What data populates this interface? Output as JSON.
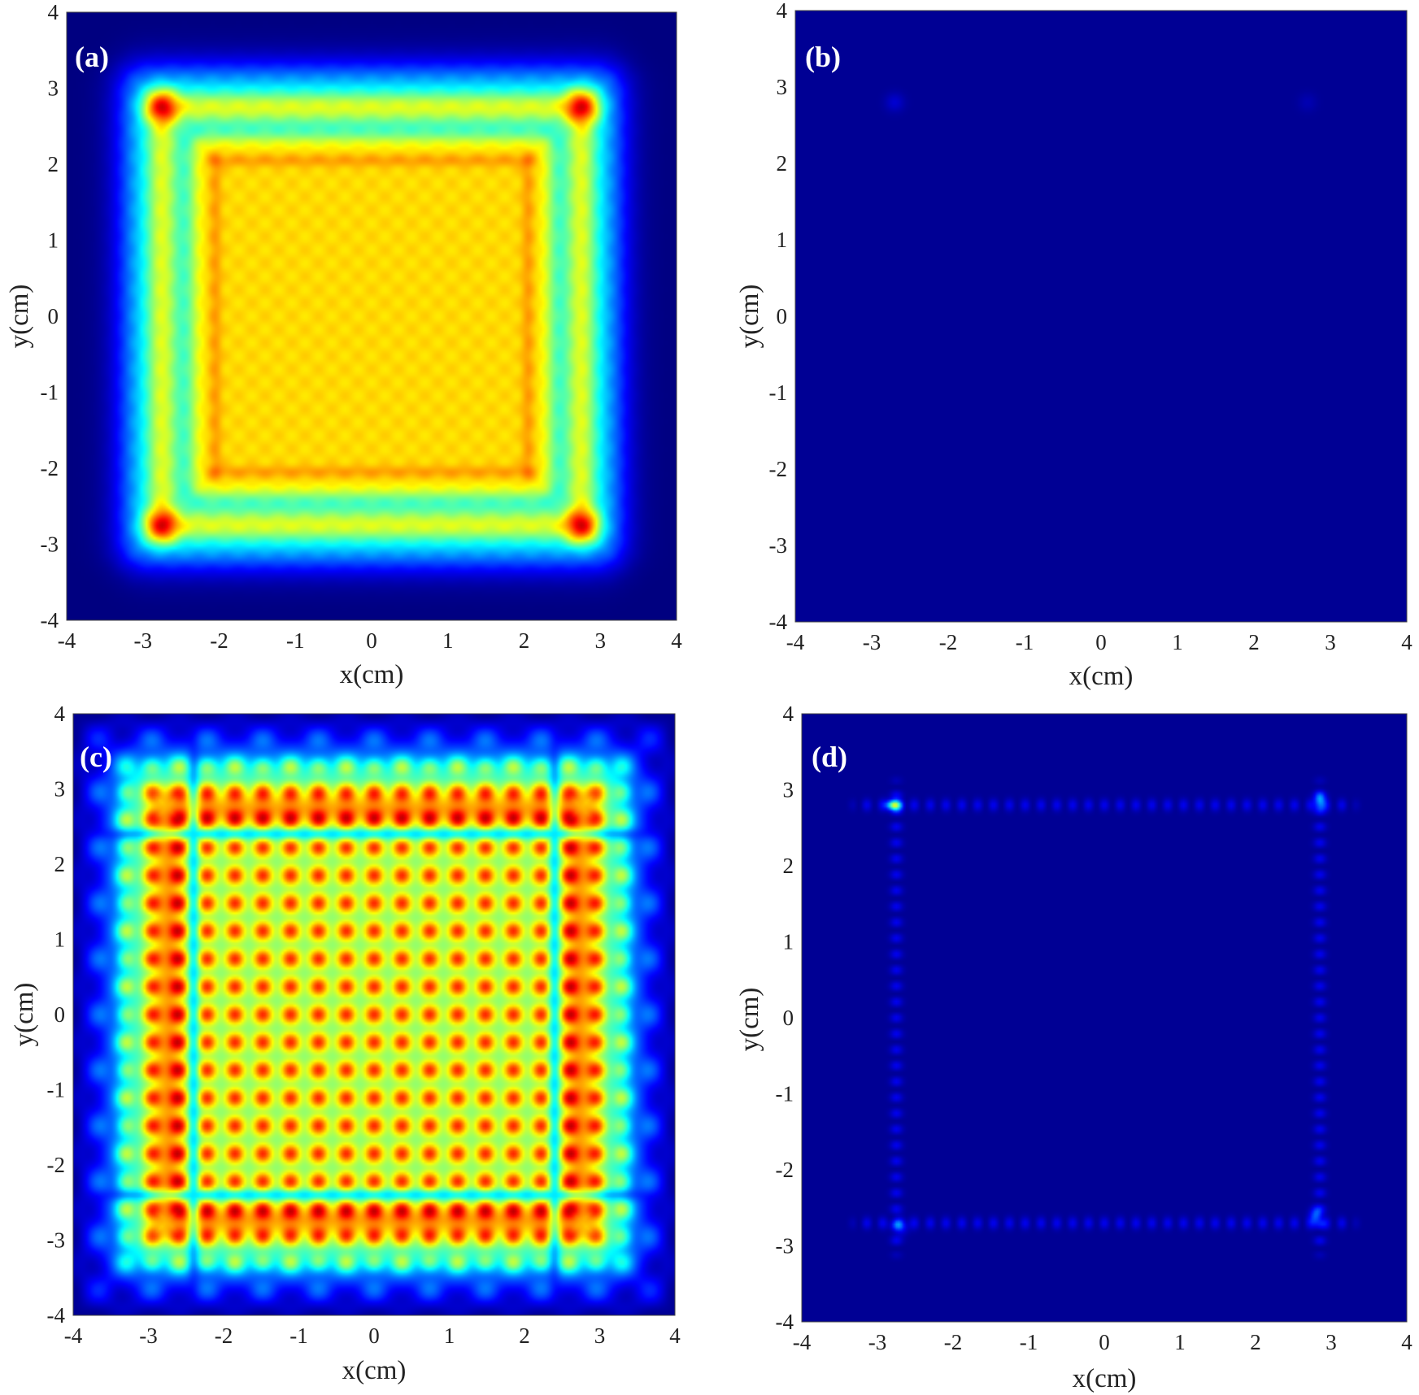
{
  "colors": {
    "background": "#00007f",
    "colormap": "jet"
  },
  "chart_data": [
    {
      "type": "heatmap",
      "panel": "a",
      "label": "(a)",
      "pattern": "smooth-frame",
      "xlabel": "x(cm)",
      "ylabel": "y(cm)",
      "xlim": [
        -4,
        4
      ],
      "ylim": [
        -4,
        4
      ],
      "xticks": [
        "-4",
        "-3",
        "-2",
        "-1",
        "0",
        "1",
        "2",
        "3",
        "4"
      ],
      "yticks": [
        "4",
        "3",
        "2",
        "1",
        "0",
        "-1",
        "-2",
        "-3",
        "-4"
      ],
      "grid": false
    },
    {
      "type": "heatmap",
      "panel": "b",
      "label": "(b)",
      "pattern": "near-uniform-low",
      "xlabel": "x(cm)",
      "ylabel": "y(cm)",
      "xlim": [
        -4,
        4
      ],
      "ylim": [
        -4,
        4
      ],
      "xticks": [
        "-4",
        "-3",
        "-2",
        "-1",
        "0",
        "1",
        "2",
        "3",
        "4"
      ],
      "yticks": [
        "4",
        "3",
        "2",
        "1",
        "0",
        "-1",
        "-2",
        "-3",
        "-4"
      ],
      "grid": false
    },
    {
      "type": "heatmap",
      "panel": "c",
      "label": "(c)",
      "pattern": "grid-frame",
      "xlabel": "x(cm)",
      "ylabel": "y(cm)",
      "xlim": [
        -4,
        4
      ],
      "ylim": [
        -4,
        4
      ],
      "xticks": [
        "-4",
        "-3",
        "-2",
        "-1",
        "0",
        "1",
        "2",
        "3",
        "4"
      ],
      "yticks": [
        "4",
        "3",
        "2",
        "1",
        "0",
        "-1",
        "-2",
        "-3",
        "-4"
      ],
      "grid": false
    },
    {
      "type": "heatmap",
      "panel": "d",
      "label": "(d)",
      "pattern": "sparse-edges",
      "xlabel": "x(cm)",
      "ylabel": "y(cm)",
      "xlim": [
        -4,
        4
      ],
      "ylim": [
        -4,
        4
      ],
      "xticks": [
        "-4",
        "-3",
        "-2",
        "-1",
        "0",
        "1",
        "2",
        "3",
        "4"
      ],
      "yticks": [
        "4",
        "3",
        "2",
        "1",
        "0",
        "-1",
        "-2",
        "-3",
        "-4"
      ],
      "grid": false
    }
  ]
}
